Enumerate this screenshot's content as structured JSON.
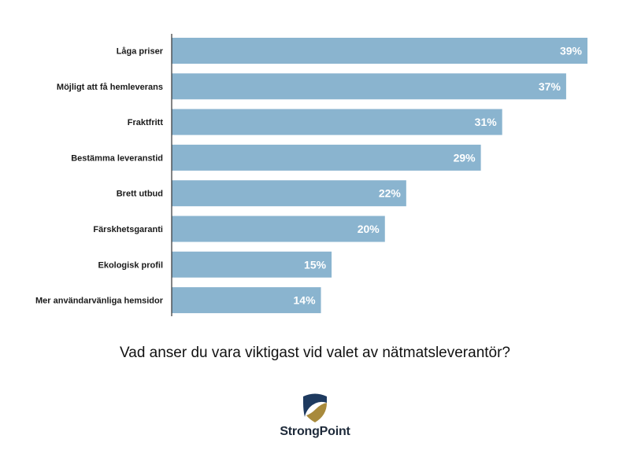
{
  "chart_data": {
    "type": "bar",
    "orientation": "horizontal",
    "categories": [
      "Låga priser",
      "Möjligt att få hemleverans",
      "Fraktfritt",
      "Bestämma leveranstid",
      "Brett utbud",
      "Färskhetsgaranti",
      "Ekologisk profil",
      "Mer användarvänliga hemsidor"
    ],
    "values": [
      39,
      37,
      31,
      29,
      22,
      20,
      15,
      14
    ],
    "value_labels": [
      "39%",
      "37%",
      "31%",
      "29%",
      "22%",
      "20%",
      "15%",
      "14%"
    ],
    "xlim": [
      0,
      39
    ],
    "grid": false,
    "legend": "none",
    "bar_color": "#8ab4cf",
    "label_color": "#ffffff"
  },
  "question": "Vad anser du vara viktigast vid valet av nätmatsleverantör?",
  "logo": {
    "text": "StrongPoint",
    "colors": {
      "dark": "#1e3a5f",
      "gold": "#a88a3c"
    }
  }
}
